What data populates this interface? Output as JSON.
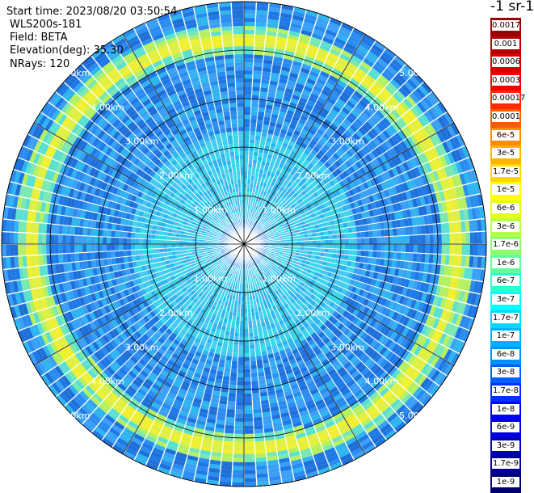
{
  "info": {
    "start_time": "Start time: 2023/08/20 03:50:54",
    "instrument": "WLS200s-181",
    "field": "Field: BETA",
    "elevation": "Elevation(deg): 35.30",
    "nrays": "NRays: 120"
  },
  "unit_label": "-1 sr-1",
  "ring_label": "km",
  "ring_values": [
    "1.00",
    "2.00",
    "3.00",
    "4.00",
    "5.00"
  ],
  "ring_label_texts": [
    "1.00km",
    "2.00km",
    "3.00km",
    "4.00km",
    "5.00km"
  ],
  "colorbar": {
    "labels": [
      "0.0017",
      "0.001",
      "0.0006",
      "0.0003",
      "0.00017",
      "0.0001",
      "6e-5",
      "3e-5",
      "1.7e-5",
      "1e-5",
      "6e-6",
      "3e-6",
      "1.7e-6",
      "1e-6",
      "6e-7",
      "3e-7",
      "1.7e-7",
      "1e-7",
      "6e-8",
      "3e-8",
      "1.7e-8",
      "1e-8",
      "6e-9",
      "3e-9",
      "1.7e-9",
      "1e-9"
    ],
    "colors": [
      "#9b0000",
      "#b80000",
      "#d90000",
      "#f40000",
      "#ff2a00",
      "#ff5a00",
      "#ff8c00",
      "#ffb300",
      "#ffd700",
      "#ffff00",
      "#e0ff1f",
      "#b4ff4a",
      "#8cff70",
      "#60ff9a",
      "#30ffce",
      "#00ffff",
      "#00d8ff",
      "#00b0ff",
      "#0090ff",
      "#0060ff",
      "#0030ff",
      "#0000ff",
      "#0000dd",
      "#0000b8",
      "#000092",
      "#00006e"
    ]
  },
  "scan": {
    "sectors": 120,
    "gates": 60,
    "max_range_km": 5.0,
    "aerosol_ring_km": 4.3
  }
}
